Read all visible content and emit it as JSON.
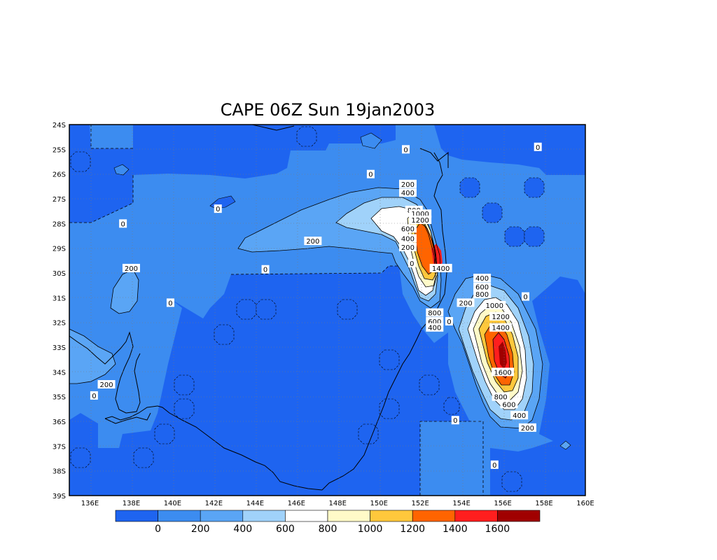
{
  "title": "CAPE 06Z Sun 19jan2003",
  "map": {
    "lat_labels": [
      "24S",
      "25S",
      "26S",
      "27S",
      "28S",
      "29S",
      "30S",
      "31S",
      "32S",
      "33S",
      "34S",
      "35S",
      "36S",
      "37S",
      "38S",
      "39S"
    ],
    "lon_labels": [
      "136E",
      "138E",
      "140E",
      "142E",
      "144E",
      "146E",
      "148E",
      "150E",
      "152E",
      "154E",
      "156E",
      "158E",
      "160E"
    ],
    "lat_range": [
      -39,
      -24
    ],
    "lon_range": [
      135,
      160
    ],
    "grid": "dotted"
  },
  "colorbar": {
    "labels": [
      "0",
      "200",
      "400",
      "600",
      "800",
      "1000",
      "1200",
      "1400",
      "1600"
    ],
    "colors": [
      "#1e64f0",
      "#3c8cf0",
      "#5aa5f5",
      "#a0d2fa",
      "#ffffff",
      "#fffac8",
      "#ffc83c",
      "#ff6400",
      "#ff1e1e",
      "#a00000"
    ]
  },
  "contour_labels": [
    {
      "text": "0",
      "lon": 136.2,
      "lat": -34.95
    },
    {
      "text": "200",
      "lon": 136.8,
      "lat": -34.5
    },
    {
      "text": "0",
      "lon": 137.6,
      "lat": -28.0
    },
    {
      "text": "200",
      "lon": 138.0,
      "lat": -29.8
    },
    {
      "text": "0",
      "lon": 139.9,
      "lat": -31.2
    },
    {
      "text": "0",
      "lon": 142.2,
      "lat": -27.4
    },
    {
      "text": "200",
      "lon": 146.8,
      "lat": -28.7
    },
    {
      "text": "0",
      "lon": 144.5,
      "lat": -29.85
    },
    {
      "text": "0",
      "lon": 149.6,
      "lat": -26.0
    },
    {
      "text": "200",
      "lon": 151.4,
      "lat": -26.4
    },
    {
      "text": "400",
      "lon": 151.4,
      "lat": -26.75
    },
    {
      "text": "0",
      "lon": 151.3,
      "lat": -25.0
    },
    {
      "text": "800",
      "lon": 151.7,
      "lat": -27.45
    },
    {
      "text": "1000",
      "lon": 152.0,
      "lat": -27.6
    },
    {
      "text": "1200",
      "lon": 152.0,
      "lat": -27.85
    },
    {
      "text": "600",
      "lon": 151.4,
      "lat": -28.2
    },
    {
      "text": "400",
      "lon": 151.4,
      "lat": -28.6
    },
    {
      "text": "200",
      "lon": 151.4,
      "lat": -28.95
    },
    {
      "text": "0",
      "lon": 151.6,
      "lat": -29.6
    },
    {
      "text": "1400",
      "lon": 153.0,
      "lat": -29.8
    },
    {
      "text": "800",
      "lon": 152.7,
      "lat": -31.6
    },
    {
      "text": "600",
      "lon": 152.7,
      "lat": -31.95
    },
    {
      "text": "400",
      "lon": 152.7,
      "lat": -32.2
    },
    {
      "text": "200",
      "lon": 154.2,
      "lat": -31.2
    },
    {
      "text": "0",
      "lon": 153.4,
      "lat": -31.95
    },
    {
      "text": "400",
      "lon": 155.0,
      "lat": -30.2
    },
    {
      "text": "600",
      "lon": 155.0,
      "lat": -30.55
    },
    {
      "text": "800",
      "lon": 155.0,
      "lat": -30.85
    },
    {
      "text": "1000",
      "lon": 155.6,
      "lat": -31.3
    },
    {
      "text": "1200",
      "lon": 155.9,
      "lat": -31.75
    },
    {
      "text": "1400",
      "lon": 155.9,
      "lat": -32.2
    },
    {
      "text": "1600",
      "lon": 156.0,
      "lat": -34.0
    },
    {
      "text": "800",
      "lon": 155.9,
      "lat": -35.0
    },
    {
      "text": "600",
      "lon": 156.3,
      "lat": -35.3
    },
    {
      "text": "400",
      "lon": 156.8,
      "lat": -35.75
    },
    {
      "text": "200",
      "lon": 157.2,
      "lat": -36.25
    },
    {
      "text": "0",
      "lon": 153.7,
      "lat": -35.95
    },
    {
      "text": "0",
      "lon": 155.6,
      "lat": -37.75
    },
    {
      "text": "0",
      "lon": 157.1,
      "lat": -30.95
    },
    {
      "text": "0",
      "lon": 157.7,
      "lat": -24.9
    }
  ]
}
